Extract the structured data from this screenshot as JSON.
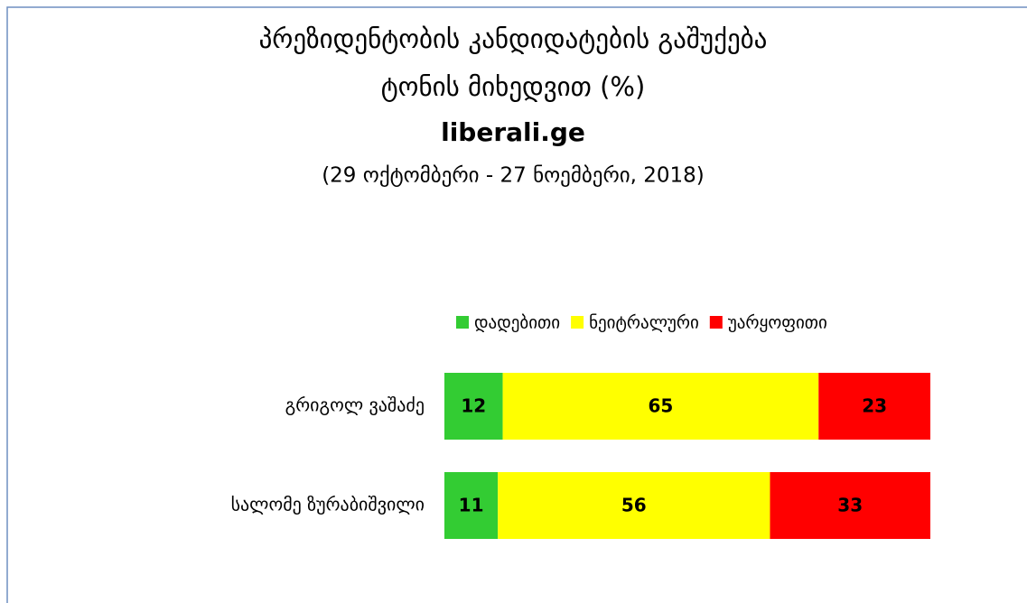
{
  "chart_data": {
    "type": "stacked_bar_horizontal",
    "title": [
      "პრეზიდენტობის კანდიდატების გაშუქება",
      "ტონის მიხედვით (%)"
    ],
    "source": "liberali.ge",
    "subtitle": "(29 ოქტომბერი - 27 ნოემბერი, 2018)",
    "categories": [
      "გრიგოლ ვაშაძე",
      "სალომე ზურაბიშვილი"
    ],
    "series": [
      {
        "name": "დადებითი",
        "color": "#33cc33",
        "values": [
          12,
          11
        ]
      },
      {
        "name": "ნეიტრალური",
        "color": "#ffff00",
        "values": [
          65,
          56
        ]
      },
      {
        "name": "უარყოფითი",
        "color": "#ff0000",
        "values": [
          23,
          33
        ]
      }
    ],
    "legend": "top"
  }
}
